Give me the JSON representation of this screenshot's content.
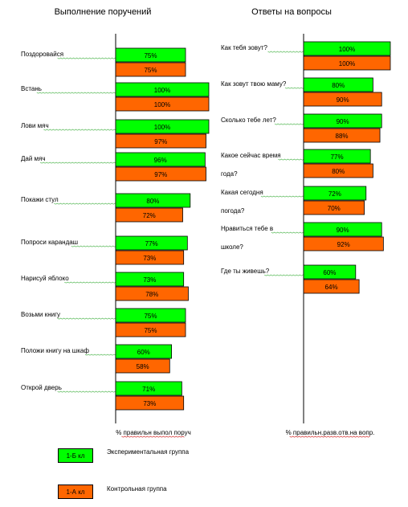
{
  "colors": {
    "experimental": "#00ff00",
    "control": "#ff6600"
  },
  "legend": [
    {
      "box_label": "1-Б кл",
      "text": "Экспериментальная группа",
      "series": "experimental"
    },
    {
      "box_label": "1-А кл",
      "text": "Контрольная группа",
      "series": "control"
    }
  ],
  "chart_data": [
    {
      "type": "bar",
      "orientation": "horizontal",
      "title": "Выполнение поручений",
      "xlabel": "% правильн выпол поруч",
      "xlim": [
        0,
        100
      ],
      "grid": false,
      "categories": [
        "Поздоровайся",
        "Встань",
        "Лови мяч",
        "Дай мяч",
        "Покажи стул",
        "Попроси карандаш",
        "Нарисуй яблоко",
        "Возьми книгу",
        "Положи книгу на шкаф",
        "Открой дверь"
      ],
      "series": [
        {
          "key": "experimental",
          "values": [
            75,
            100,
            100,
            96,
            80,
            77,
            73,
            75,
            60,
            71
          ]
        },
        {
          "key": "control",
          "values": [
            75,
            100,
            97,
            97,
            72,
            73,
            78,
            75,
            58,
            73
          ]
        }
      ],
      "value_labels": {
        "experimental": [
          "75%",
          "100%",
          "100%",
          "96%",
          "80%",
          "77%",
          "73%",
          "75%",
          "60%",
          "71%"
        ],
        "control": [
          "75%",
          "100%",
          "97%",
          "97%",
          "72%",
          "73%",
          "78%",
          "75%",
          "58%",
          "73%"
        ]
      }
    },
    {
      "type": "bar",
      "orientation": "horizontal",
      "title": "Ответы на вопросы",
      "xlabel": "% правильн.разв.отв.на вопр.",
      "xlim": [
        0,
        100
      ],
      "grid": false,
      "categories": [
        "Как тебя зовут?",
        "Как зовут твою маму?",
        "Сколько тебе лет?",
        "Какое сейчас время года?",
        "Какая сегодня погода?",
        "Нравиться тебе в школе?",
        "Где ты живешь?"
      ],
      "category_lines": [
        [
          "Как тебя зовут?"
        ],
        [
          "Как зовут твою маму?"
        ],
        [
          "Сколько тебе лет?"
        ],
        [
          "Какое сейчас время",
          "года?"
        ],
        [
          "Какая сегодня",
          "погода?"
        ],
        [
          "Нравиться тебе в",
          "школе?"
        ],
        [
          "Где ты живешь?"
        ]
      ],
      "series": [
        {
          "key": "experimental",
          "values": [
            100,
            80,
            90,
            77,
            72,
            90,
            60
          ]
        },
        {
          "key": "control",
          "values": [
            100,
            90,
            88,
            80,
            70,
            92,
            64
          ]
        }
      ],
      "value_labels": {
        "experimental": [
          "100%",
          "80%",
          "90%",
          "77%",
          "72%",
          "90%",
          "60%"
        ],
        "control": [
          "100%",
          "90%",
          "88%",
          "80%",
          "70%",
          "92%",
          "64%"
        ]
      }
    }
  ]
}
